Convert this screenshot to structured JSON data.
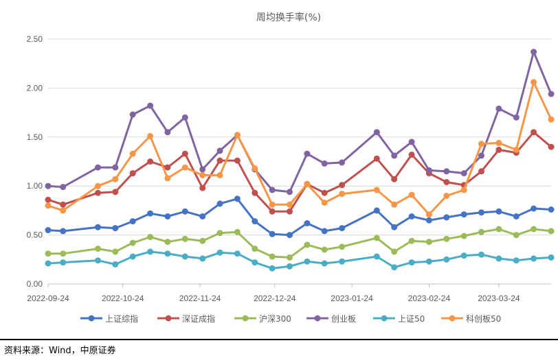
{
  "chart_data": {
    "type": "line",
    "title": "周均换手率(%)",
    "ylim": [
      0,
      2.5
    ],
    "yticks": [
      "0.00",
      "0.50",
      "1.00",
      "1.50",
      "2.00",
      "2.50"
    ],
    "xticks": [
      "2022-09-24",
      "2022-10-24",
      "2022-11-24",
      "2022-12-24",
      "2023-01-24",
      "2023-02-24",
      "2023-03-24"
    ],
    "grid": "horizontal",
    "legend_position": "bottom",
    "x": [
      "2022-09-24",
      "2022-09-30",
      "2022-10-14",
      "2022-10-21",
      "2022-10-28",
      "2022-11-04",
      "2022-11-11",
      "2022-11-18",
      "2022-11-25",
      "2022-12-02",
      "2022-12-09",
      "2022-12-16",
      "2022-12-23",
      "2022-12-30",
      "2023-01-06",
      "2023-01-13",
      "2023-01-20",
      "2023-02-03",
      "2023-02-10",
      "2023-02-17",
      "2023-02-24",
      "2023-03-03",
      "2023-03-10",
      "2023-03-17",
      "2023-03-24",
      "2023-03-31",
      "2023-04-07",
      "2023-04-14"
    ],
    "series": [
      {
        "name": "上证综指",
        "color": "#4472C4",
        "values": [
          0.55,
          0.54,
          0.58,
          0.57,
          0.64,
          0.72,
          0.69,
          0.74,
          0.69,
          0.82,
          0.87,
          0.64,
          0.51,
          0.5,
          0.62,
          0.54,
          0.57,
          0.75,
          0.58,
          0.69,
          0.65,
          0.68,
          0.71,
          0.73,
          0.74,
          0.69,
          0.77,
          0.76
        ]
      },
      {
        "name": "深证成指",
        "color": "#C0504D",
        "values": [
          0.86,
          0.81,
          0.93,
          0.94,
          1.13,
          1.25,
          1.19,
          1.33,
          0.98,
          1.26,
          1.26,
          0.93,
          0.74,
          0.74,
          1.02,
          0.93,
          1.01,
          1.28,
          1.07,
          1.32,
          1.13,
          1.04,
          1.01,
          1.15,
          1.37,
          1.34,
          1.55,
          1.4
        ]
      },
      {
        "name": "沪深300",
        "color": "#9BBB59",
        "values": [
          0.31,
          0.31,
          0.36,
          0.33,
          0.42,
          0.48,
          0.43,
          0.46,
          0.44,
          0.52,
          0.53,
          0.36,
          0.28,
          0.27,
          0.4,
          0.35,
          0.38,
          0.47,
          0.33,
          0.44,
          0.43,
          0.46,
          0.49,
          0.53,
          0.56,
          0.5,
          0.56,
          0.54
        ]
      },
      {
        "name": "创业板",
        "color": "#8064A2",
        "values": [
          1.0,
          0.99,
          1.19,
          1.19,
          1.73,
          1.82,
          1.55,
          1.7,
          1.17,
          1.36,
          1.52,
          1.17,
          0.96,
          0.94,
          1.33,
          1.23,
          1.24,
          1.55,
          1.31,
          1.45,
          1.16,
          1.15,
          1.13,
          1.31,
          1.79,
          1.7,
          2.37,
          1.94
        ]
      },
      {
        "name": "上证50",
        "color": "#4BACC6",
        "values": [
          0.21,
          0.22,
          0.24,
          0.2,
          0.28,
          0.33,
          0.31,
          0.28,
          0.26,
          0.32,
          0.31,
          0.22,
          0.16,
          0.18,
          0.23,
          0.21,
          0.23,
          0.28,
          0.17,
          0.22,
          0.23,
          0.25,
          0.29,
          0.3,
          0.26,
          0.24,
          0.26,
          0.27
        ]
      },
      {
        "name": "科创板50",
        "color": "#F79646",
        "values": [
          0.8,
          0.75,
          1.0,
          1.07,
          1.33,
          1.51,
          1.08,
          1.19,
          1.11,
          1.11,
          1.52,
          1.18,
          0.81,
          0.81,
          1.02,
          0.83,
          0.92,
          0.96,
          0.81,
          0.91,
          0.71,
          0.9,
          0.96,
          1.43,
          1.44,
          1.37,
          2.06,
          1.68
        ]
      }
    ]
  },
  "source_text": "资料来源：Wind，中原证券"
}
